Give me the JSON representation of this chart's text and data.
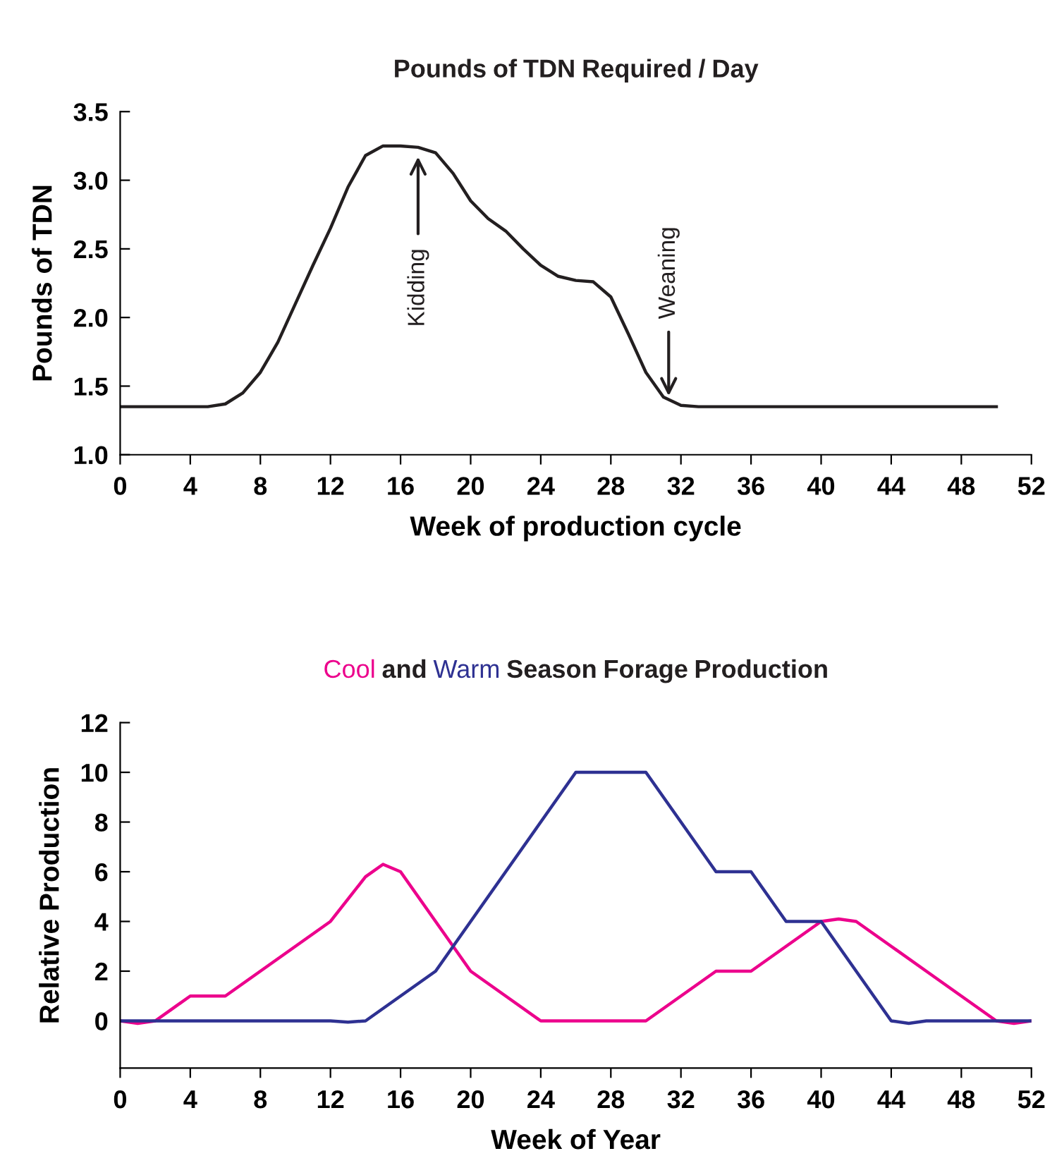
{
  "chart_data": [
    {
      "type": "line",
      "title": "Pounds of TDN Required / Day",
      "xlabel": "Week of production cycle",
      "ylabel": "Pounds of TDN",
      "xlim": [
        0,
        52
      ],
      "xticks": [
        0,
        4,
        8,
        12,
        16,
        20,
        24,
        28,
        32,
        36,
        40,
        44,
        48,
        52
      ],
      "ylim": [
        1.0,
        3.5
      ],
      "yticks": [
        {
          "value": 1.0,
          "label": "1.0"
        },
        {
          "value": 1.5,
          "label": "1.5"
        },
        {
          "value": 2.0,
          "label": "2.0"
        },
        {
          "value": 2.5,
          "label": "2.5"
        },
        {
          "value": 3.0,
          "label": "3.0"
        },
        {
          "value": 3.5,
          "label": "3.5"
        }
      ],
      "grid": false,
      "legend": false,
      "marker": "none",
      "line_style": "solid",
      "x": [
        0,
        2,
        4,
        5,
        6,
        7,
        8,
        9,
        10,
        11,
        12,
        13,
        14,
        15,
        16,
        17,
        18,
        19,
        20,
        21,
        22,
        23,
        24,
        25,
        26,
        27,
        28,
        29,
        30,
        31,
        32,
        33,
        35,
        40,
        45,
        50
      ],
      "series": [
        {
          "color": "#231f20",
          "values": [
            1.35,
            1.35,
            1.35,
            1.35,
            1.37,
            1.45,
            1.6,
            1.82,
            2.1,
            2.38,
            2.65,
            2.95,
            3.18,
            3.25,
            3.25,
            3.24,
            3.2,
            3.05,
            2.85,
            2.72,
            2.63,
            2.5,
            2.38,
            2.3,
            2.27,
            2.26,
            2.15,
            1.88,
            1.6,
            1.42,
            1.36,
            1.35,
            1.35,
            1.35,
            1.35,
            1.35
          ]
        }
      ],
      "annotations": [
        {
          "text": "Kidding",
          "x": 17,
          "y": 3.2
        },
        {
          "text": "Weaning",
          "x": 31.3,
          "y": 1.4
        }
      ]
    },
    {
      "type": "line",
      "title": "Cool and Warm Season Forage Production",
      "xlabel": "Week of Year",
      "ylabel": "Relative Production",
      "xlim": [
        0,
        52
      ],
      "xticks": [
        0,
        4,
        8,
        12,
        16,
        20,
        24,
        28,
        32,
        36,
        40,
        44,
        48,
        52
      ],
      "ylim": [
        -1.9,
        12
      ],
      "yticks": [
        0,
        2,
        4,
        6,
        8,
        10,
        12
      ],
      "grid": false,
      "legend": false,
      "marker": "none",
      "line_style": "solid",
      "series": [
        {
          "color": "#ec008c",
          "x": [
            0,
            1,
            2,
            3,
            4,
            5,
            6,
            8,
            10,
            12,
            14,
            15,
            16,
            18,
            20,
            22,
            24,
            26,
            28,
            30,
            32,
            34,
            36,
            38,
            40,
            41,
            42,
            44,
            46,
            48,
            50,
            51,
            52
          ],
          "values": [
            0,
            -0.1,
            0,
            0.5,
            1,
            1,
            1,
            2,
            3,
            4,
            5.8,
            6.3,
            6,
            4,
            2,
            1,
            0,
            0,
            0,
            0,
            1,
            2,
            2,
            3,
            4,
            4.1,
            4,
            3,
            2,
            1,
            0,
            -0.1,
            0
          ]
        },
        {
          "color": "#2e3192",
          "x": [
            0,
            12,
            13,
            14,
            16,
            18,
            20,
            22,
            24,
            26,
            28,
            30,
            32,
            34,
            36,
            38,
            40,
            42,
            44,
            45,
            46,
            48,
            52
          ],
          "values": [
            0,
            0,
            -0.05,
            0,
            1,
            2,
            4,
            6,
            8,
            10,
            10,
            10,
            8,
            6,
            6,
            4,
            4,
            2,
            0,
            -0.1,
            0,
            0,
            0
          ]
        }
      ]
    }
  ]
}
